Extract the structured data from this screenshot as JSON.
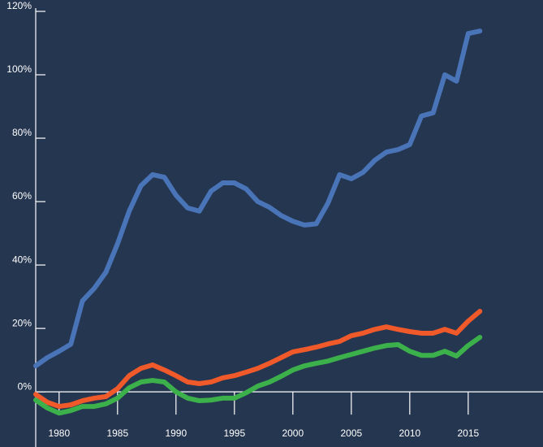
{
  "chart_data": {
    "type": "line",
    "x": [
      1978,
      1979,
      1980,
      1981,
      1982,
      1983,
      1984,
      1985,
      1986,
      1987,
      1988,
      1989,
      1990,
      1991,
      1992,
      1993,
      1994,
      1995,
      1996,
      1997,
      1998,
      1999,
      2000,
      2001,
      2002,
      2003,
      2004,
      2005,
      2006,
      2007,
      2008,
      2009,
      2010,
      2011,
      2012,
      2013,
      2014,
      2015,
      2016
    ],
    "series": [
      {
        "color": "#4a74b8",
        "values": [
          8.2,
          10.8,
          12.8,
          15,
          28.7,
          32.6,
          37.7,
          46.7,
          57,
          65,
          68.5,
          67.7,
          62,
          58,
          57,
          63.3,
          65.9,
          65.9,
          64,
          60,
          58.2,
          55.6,
          53.8,
          52.6,
          53,
          59.5,
          68.5,
          67.2,
          69.2,
          73,
          75.6,
          76.4,
          78,
          87,
          88,
          100,
          98,
          113,
          113.8
        ]
      },
      {
        "color": "#f05a2a",
        "values": [
          -0.8,
          -3.3,
          -4.6,
          -4.1,
          -2.8,
          -2,
          -1.5,
          1,
          5.1,
          7.4,
          8.5,
          6.9,
          5.1,
          3.1,
          2.6,
          3.1,
          4.4,
          5.1,
          6.2,
          7.4,
          9,
          10.8,
          12.6,
          13.3,
          14.1,
          15.1,
          15.9,
          17.7,
          18.5,
          19.7,
          20.5,
          19.7,
          19,
          18.5,
          18.5,
          19.7,
          18.5,
          22.3,
          25.4
        ]
      },
      {
        "color": "#3cb04a",
        "values": [
          -2.6,
          -5.1,
          -6.7,
          -5.9,
          -4.6,
          -4.6,
          -3.8,
          -2,
          1.3,
          3.1,
          3.6,
          3.1,
          0,
          -2,
          -2.8,
          -2.6,
          -2,
          -2,
          -0.3,
          1.8,
          3.1,
          4.9,
          6.9,
          8.2,
          9,
          9.7,
          10.8,
          11.8,
          12.8,
          13.8,
          14.6,
          14.9,
          12.8,
          11.5,
          11.5,
          12.8,
          11.3,
          14.6,
          17.2
        ]
      }
    ],
    "xlim": [
      1978,
      2021.4
    ],
    "xticks": [
      1980,
      1985,
      1990,
      1995,
      2000,
      2005,
      2010,
      2015
    ],
    "ylim": [
      -17.4,
      120
    ],
    "yticks": [
      {
        "value": 0,
        "label": "0%"
      },
      {
        "value": 20,
        "label": "20%"
      },
      {
        "value": 40,
        "label": "40%"
      },
      {
        "value": 60,
        "label": "60%"
      },
      {
        "value": 80,
        "label": "80%"
      },
      {
        "value": 100,
        "label": "100%"
      },
      {
        "value": 120,
        "label": "120%"
      }
    ]
  }
}
